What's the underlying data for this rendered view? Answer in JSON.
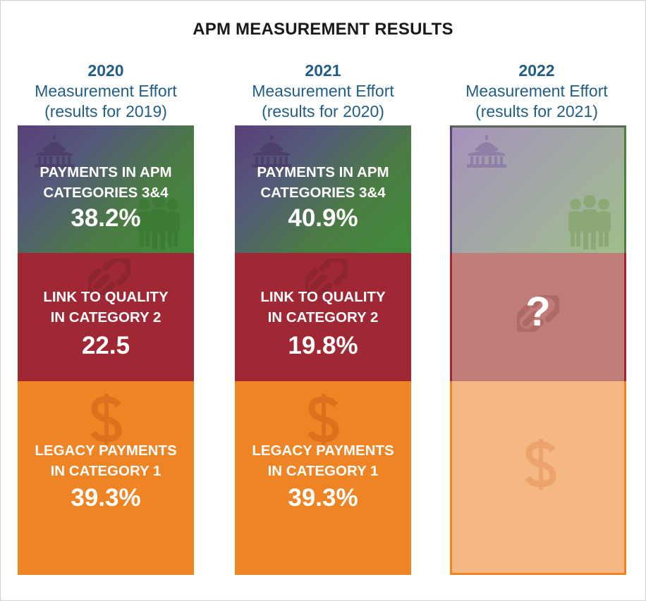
{
  "chart_data": {
    "type": "table",
    "title": "APM MEASUREMENT RESULTS",
    "category_labels": {
      "apm": "PAYMENTS IN APM CATEGORIES 3&4",
      "link": "LINK TO QUALITY IN CATEGORY 2",
      "legacy": "LEGACY PAYMENTS IN CATEGORY 1"
    },
    "columns": [
      {
        "year": "2020",
        "subtitle": "Measurement Effort",
        "results_for": "(results for 2019)",
        "apm_label_line1": "PAYMENTS IN APM",
        "apm_label_line2": "CATEGORIES 3&4",
        "apm_value": "38.2%",
        "link_label_line1": "LINK TO QUALITY",
        "link_label_line2": "IN CATEGORY 2",
        "link_value": "22.5",
        "legacy_label_line1": "LEGACY PAYMENTS",
        "legacy_label_line2": "IN CATEGORY 1",
        "legacy_value": "39.3%"
      },
      {
        "year": "2021",
        "subtitle": "Measurement Effort",
        "results_for": "(results for 2020)",
        "apm_label_line1": "PAYMENTS IN APM",
        "apm_label_line2": "CATEGORIES 3&4",
        "apm_value": "40.9%",
        "link_label_line1": "LINK TO QUALITY",
        "link_label_line2": "IN CATEGORY 2",
        "link_value": "19.8%",
        "legacy_label_line1": "LEGACY PAYMENTS",
        "legacy_label_line2": "IN CATEGORY 1",
        "legacy_value": "39.3%"
      },
      {
        "year": "2022",
        "subtitle": "Measurement Effort",
        "results_for": "(results for 2021)",
        "pending_mark": "?"
      }
    ],
    "colors": {
      "apm_gradient": [
        "#5b3f7a",
        "#3f8b3a"
      ],
      "link": "#a02834",
      "legacy": "#ee8424",
      "heading": "#225d86"
    }
  },
  "icons": [
    "capitol-building-icon",
    "people-group-icon",
    "chain-link-icon",
    "dollar-sign-icon"
  ]
}
